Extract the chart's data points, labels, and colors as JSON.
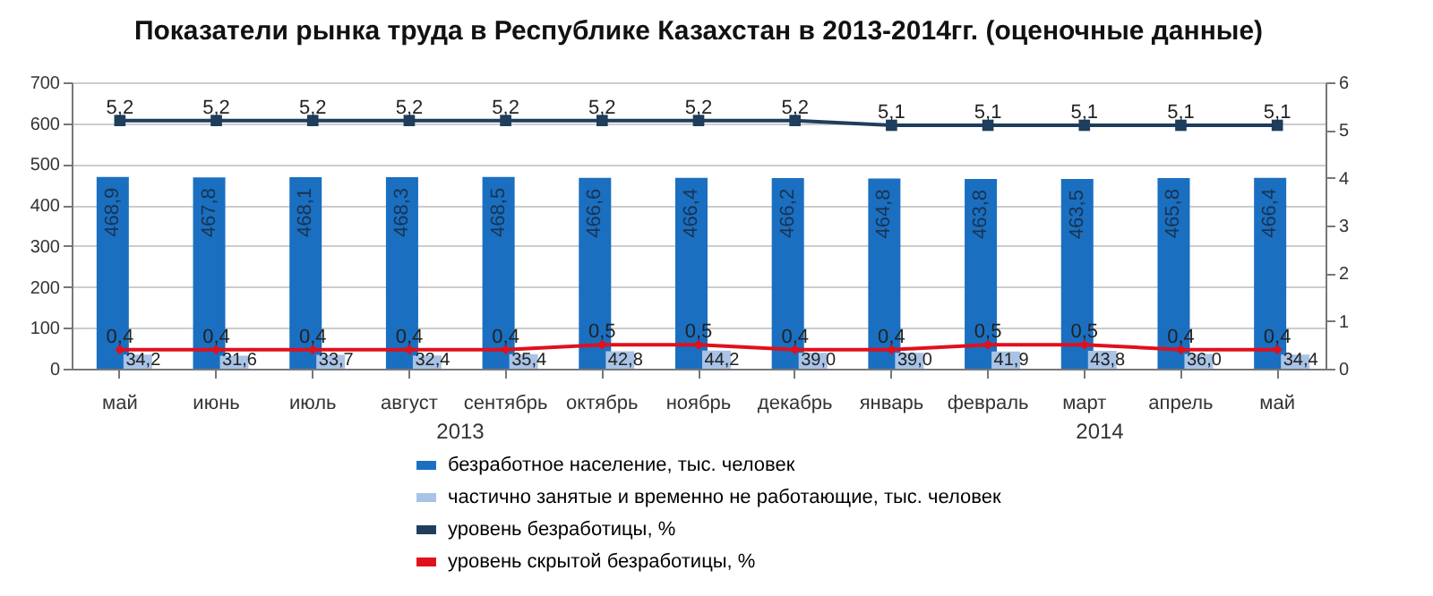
{
  "chart_data": {
    "type": "bar",
    "title": "Показатели рынка труда в Республике Казахстан в 2013-2014гг. (оценочные данные)",
    "categories": [
      "май",
      "июнь",
      "июль",
      "август",
      "сентябрь",
      "октябрь",
      "ноябрь",
      "декабрь",
      "январь",
      "февраль",
      "март",
      "апрель",
      "май"
    ],
    "series": [
      {
        "name": "безработное население, тыс. человек",
        "color": "#1a6fc0",
        "values": [
          468.9,
          467.8,
          468.1,
          468.3,
          468.5,
          466.6,
          466.4,
          466.2,
          464.8,
          463.8,
          463.5,
          465.8,
          466.4
        ],
        "value_labels": [
          "468,9",
          "467,8",
          "468,1",
          "468,3",
          "468,5",
          "466,6",
          "466,4",
          "466,2",
          "464,8",
          "463,8",
          "463,5",
          "465,8",
          "466,4"
        ]
      },
      {
        "name": "частично занятые и временно не работающие, тыс. человек",
        "color": "#a8c3e6",
        "values": [
          34.2,
          31.6,
          33.7,
          32.4,
          35.4,
          42.8,
          44.2,
          39.0,
          39.0,
          41.9,
          43.8,
          36.0,
          34.4
        ],
        "value_labels": [
          "34,2",
          "31,6",
          "33,7",
          "32,4",
          "35,4",
          "42,8",
          "44,2",
          "39,0",
          "39,0",
          "41,9",
          "43,8",
          "36,0",
          "34,4"
        ]
      },
      {
        "name": "уровень безработицы, %",
        "type": "line",
        "axis": "y2",
        "color": "#1f3d5c",
        "marker": "square",
        "values": [
          5.2,
          5.2,
          5.2,
          5.2,
          5.2,
          5.2,
          5.2,
          5.2,
          5.1,
          5.1,
          5.1,
          5.1,
          5.1
        ],
        "value_labels": [
          "5,2",
          "5,2",
          "5,2",
          "5,2",
          "5,2",
          "5,2",
          "5,2",
          "5,2",
          "5,1",
          "5,1",
          "5,1",
          "5,1",
          "5,1"
        ]
      },
      {
        "name": "уровень скрытой безработицы, %",
        "type": "line",
        "axis": "y2",
        "color": "#e0101c",
        "marker": "diamond",
        "values": [
          0.4,
          0.4,
          0.4,
          0.4,
          0.4,
          0.5,
          0.5,
          0.4,
          0.4,
          0.5,
          0.5,
          0.4,
          0.4
        ],
        "value_labels": [
          "0,4",
          "0,4",
          "0,4",
          "0,4",
          "0,4",
          "0,5",
          "0,5",
          "0,4",
          "0,4",
          "0,5",
          "0,5",
          "0,4",
          "0,4"
        ]
      }
    ],
    "ylim": [
      0,
      700
    ],
    "yticks": [
      0,
      100,
      200,
      300,
      400,
      500,
      600,
      700
    ],
    "y2lim": [
      0,
      6
    ],
    "y2ticks": [
      0,
      1,
      2,
      3,
      4,
      5,
      6
    ],
    "annotations": [
      "2013",
      "2014"
    ],
    "grid": "y",
    "legend": "bottom"
  }
}
